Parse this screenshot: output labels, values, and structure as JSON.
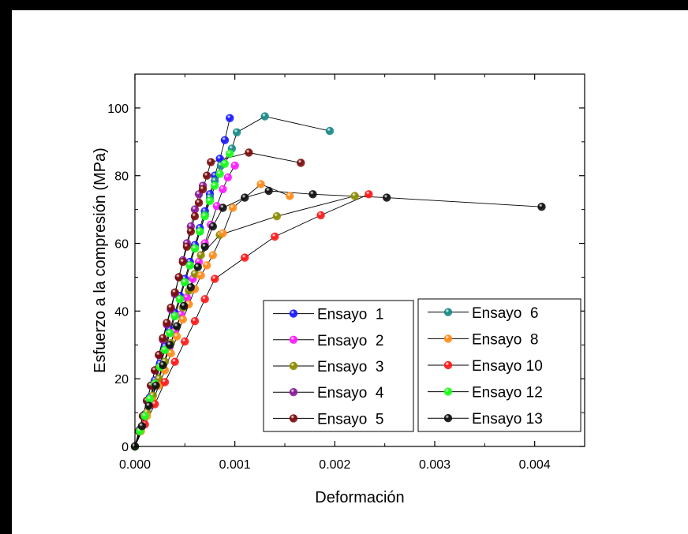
{
  "chart_data": {
    "type": "scatter",
    "xlabel": "Deformación",
    "ylabel": "Esfuerzo a la compresión (MPa)",
    "xlim": [
      0,
      0.0045
    ],
    "ylim": [
      0,
      110
    ],
    "x_ticks": [
      0,
      0.001,
      0.002,
      0.003,
      0.004
    ],
    "x_tick_labels": [
      "0.000",
      "0.001",
      "0.002",
      "0.003",
      "0.004"
    ],
    "y_ticks": [
      0,
      20,
      40,
      60,
      80,
      100
    ],
    "y_tick_labels": [
      "0",
      "20",
      "40",
      "60",
      "80",
      "100"
    ],
    "grid": false,
    "legend_placement": "lower-right, two boxes",
    "series": [
      {
        "name": "Ensayo  1",
        "color": "#1a1aff",
        "x": [
          0,
          5e-05,
          0.0001,
          0.00015,
          0.0002,
          0.00025,
          0.0003,
          0.00035,
          0.0004,
          0.00045,
          0.0005,
          0.00055,
          0.0006,
          0.00065,
          0.0007,
          0.00075,
          0.0008,
          0.00085,
          0.0009,
          0.00095
        ],
        "y": [
          0,
          5,
          9.5,
          14.5,
          19.5,
          24.5,
          29.5,
          34.5,
          39.5,
          44.5,
          49.5,
          54.5,
          59.5,
          64.5,
          69.5,
          74.5,
          80,
          85,
          90.5,
          97
        ]
      },
      {
        "name": "Ensayo  2",
        "color": "#ff1aff",
        "x": [
          0,
          5e-05,
          0.0001,
          0.00016,
          0.00022,
          0.00028,
          0.00034,
          0.0004,
          0.00046,
          0.00052,
          0.00058,
          0.00064,
          0.0007,
          0.00076,
          0.00082,
          0.00088,
          0.00093,
          0.001
        ],
        "y": [
          0,
          4.5,
          9,
          14,
          19,
          24,
          29,
          34,
          39,
          44,
          49.5,
          54.5,
          60,
          65.5,
          71,
          76,
          79.5,
          83
        ]
      },
      {
        "name": "Ensayo  3",
        "color": "#8c8c00",
        "x": [
          0,
          6e-05,
          0.00012,
          0.00018,
          0.00024,
          0.0003,
          0.00036,
          0.00042,
          0.00048,
          0.00054,
          0.0006,
          0.00066,
          0.00085,
          0.00142,
          0.0022
        ],
        "y": [
          0,
          5,
          10,
          15,
          20,
          25,
          30.5,
          35.5,
          41,
          46,
          51,
          56.5,
          62.5,
          68,
          74
        ]
      },
      {
        "name": "Ensayo  4",
        "color": "#8a1a9a",
        "x": [
          0,
          4e-05,
          8e-05,
          0.00012,
          0.00016,
          0.0002,
          0.00024,
          0.00028,
          0.00032,
          0.00036,
          0.0004,
          0.00044,
          0.00048,
          0.00052,
          0.00056,
          0.0006,
          0.00064,
          0.00068
        ],
        "y": [
          0,
          4.5,
          9,
          13.5,
          18,
          22.5,
          27,
          31.5,
          36,
          40.5,
          45,
          50,
          55,
          60,
          65,
          70,
          74.5,
          77
        ]
      },
      {
        "name": "Ensayo  5",
        "color": "#7a0d0d",
        "x": [
          0,
          4e-05,
          8e-05,
          0.00012,
          0.00016,
          0.0002,
          0.00024,
          0.00028,
          0.00032,
          0.00036,
          0.0004,
          0.00044,
          0.00048,
          0.00052,
          0.00056,
          0.0006,
          0.00064,
          0.00068,
          0.00072,
          0.00076,
          0.00114,
          0.00166
        ],
        "y": [
          0,
          4.5,
          9,
          13.5,
          18,
          22.5,
          27,
          32,
          36.5,
          41,
          45.5,
          50,
          54.5,
          59,
          63.5,
          68,
          72,
          76,
          80,
          84,
          86.8,
          83.8
        ]
      },
      {
        "name": "Ensayo  6",
        "color": "#1a8a8a",
        "x": [
          0,
          5e-05,
          0.0001,
          0.00015,
          0.0002,
          0.00025,
          0.0003,
          0.00035,
          0.0004,
          0.00045,
          0.0005,
          0.00055,
          0.0006,
          0.00065,
          0.0007,
          0.00075,
          0.0008,
          0.00086,
          0.00097,
          0.00102,
          0.0013,
          0.00195
        ],
        "y": [
          0,
          4.5,
          9,
          13.5,
          18.5,
          23.5,
          28.5,
          33.5,
          38.5,
          43.5,
          48.5,
          53.5,
          58.5,
          63.5,
          68.5,
          73.5,
          78.5,
          83,
          88,
          92.8,
          97.5,
          93.2
        ]
      },
      {
        "name": "Ensayo  8",
        "color": "#ff8c1a",
        "x": [
          0,
          6e-05,
          0.00012,
          0.00018,
          0.00024,
          0.0003,
          0.00036,
          0.00042,
          0.00048,
          0.00054,
          0.0006,
          0.00066,
          0.00072,
          0.00078,
          0.00088,
          0.00098,
          0.00126,
          0.00155
        ],
        "y": [
          0,
          4.5,
          9,
          13.5,
          18,
          22.5,
          27.5,
          32.5,
          37.5,
          42,
          46.5,
          50.5,
          53.5,
          56.5,
          63,
          70.5,
          77.5,
          74
        ]
      },
      {
        "name": "Ensayo  10",
        "color": "#ff1a1a",
        "x": [
          0,
          0.0001,
          0.0002,
          0.0003,
          0.0004,
          0.0005,
          0.0006,
          0.0007,
          0.0008,
          0.0011,
          0.0014,
          0.00186,
          0.00234
        ],
        "y": [
          0,
          6.5,
          12.5,
          19,
          25,
          31,
          37,
          43.5,
          49.5,
          55.8,
          62,
          68.3,
          74.5
        ]
      },
      {
        "name": "Ensayo  12",
        "color": "#1aff1a",
        "x": [
          0,
          5e-05,
          0.0001,
          0.00015,
          0.0002,
          0.00025,
          0.0003,
          0.00035,
          0.0004,
          0.00045,
          0.0005,
          0.00055,
          0.0006,
          0.00065,
          0.0007,
          0.00075,
          0.0008,
          0.00085,
          0.0009,
          0.00095
        ],
        "y": [
          0,
          4.5,
          9,
          14,
          18.5,
          23.5,
          28.5,
          33.5,
          38.5,
          43.5,
          48.5,
          53.5,
          58.5,
          63.5,
          68,
          72.5,
          77,
          80.5,
          83.5,
          86.5
        ]
      },
      {
        "name": "Ensayo 13",
        "color": "#111111",
        "x": [
          0,
          7e-05,
          0.00014,
          0.00021,
          0.00028,
          0.00035,
          0.00042,
          0.00049,
          0.00056,
          0.00063,
          0.0007,
          0.00078,
          0.00088,
          0.0011,
          0.00134,
          0.00178,
          0.00252,
          0.00407
        ],
        "y": [
          0,
          6,
          12,
          18,
          24,
          30,
          35.5,
          41.5,
          47,
          53,
          59,
          65,
          70.5,
          73.5,
          75.5,
          74.5,
          73.5,
          70.8
        ]
      }
    ],
    "legend_1": [
      "Ensayo  1",
      "Ensayo  2",
      "Ensayo  3",
      "Ensayo  4",
      "Ensayo  5"
    ],
    "legend_2": [
      "Ensayo  6",
      "Ensayo  8",
      "Ensayo 10",
      "Ensayo 12",
      "Ensayo 13"
    ]
  }
}
